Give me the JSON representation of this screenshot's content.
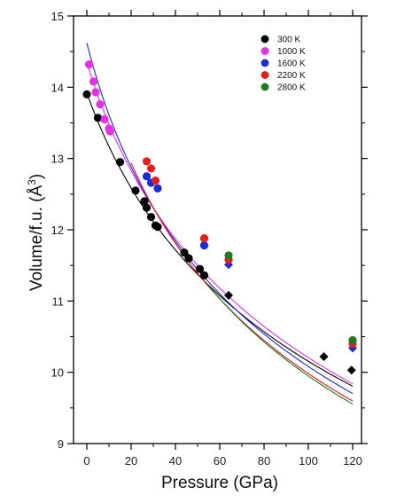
{
  "chart_data": {
    "type": "scatter",
    "title": "",
    "xlabel": "Pressure (GPa)",
    "ylabel_main": "Volume/f.u. (Å",
    "ylabel_sup": "3",
    "ylabel_close": ")",
    "xlim": [
      -6,
      124
    ],
    "ylim": [
      9,
      15
    ],
    "xticks": [
      0,
      20,
      40,
      60,
      80,
      100,
      120
    ],
    "yticks": [
      9,
      10,
      11,
      12,
      13,
      14,
      15
    ],
    "grid": false,
    "legend_position": "top-right",
    "series": [
      {
        "name": "300 K",
        "color": "#000000",
        "points": [
          {
            "x": 0,
            "y": 13.9
          },
          {
            "x": 5,
            "y": 13.57
          },
          {
            "x": 15,
            "y": 12.95
          },
          {
            "x": 22,
            "y": 12.55
          },
          {
            "x": 26,
            "y": 12.4
          },
          {
            "x": 27,
            "y": 12.31
          },
          {
            "x": 29,
            "y": 12.18
          },
          {
            "x": 31,
            "y": 12.06
          },
          {
            "x": 32,
            "y": 12.04
          },
          {
            "x": 44,
            "y": 11.68
          },
          {
            "x": 46,
            "y": 11.6
          },
          {
            "x": 51,
            "y": 11.45
          },
          {
            "x": 53,
            "y": 11.36
          }
        ],
        "diamonds": [
          {
            "x": 64,
            "y": 11.08
          },
          {
            "x": 107,
            "y": 10.22
          },
          {
            "x": 119.5,
            "y": 10.03
          }
        ],
        "fit": {
          "V0": 13.92,
          "K0": 160,
          "K0p": 4.3,
          "xstart": 0
        }
      },
      {
        "name": "1000 K",
        "color": "#e82ee8",
        "points": [
          {
            "x": 1,
            "y": 14.32
          },
          {
            "x": 3,
            "y": 14.08
          },
          {
            "x": 4,
            "y": 13.93
          },
          {
            "x": 6,
            "y": 13.76
          },
          {
            "x": 8,
            "y": 13.55
          },
          {
            "x": 10,
            "y": 13.42
          },
          {
            "x": 10.5,
            "y": 13.38
          }
        ],
        "diamonds": [],
        "fit": {
          "V0": 14.35,
          "K0": 140,
          "K0p": 4.3,
          "xstart": 0
        }
      },
      {
        "name": "1600 K",
        "color": "#1b2bd6",
        "points": [
          {
            "x": 27,
            "y": 12.75
          },
          {
            "x": 29,
            "y": 12.66
          },
          {
            "x": 32,
            "y": 12.58
          },
          {
            "x": 53,
            "y": 11.78
          }
        ],
        "diamonds": [
          {
            "x": 64,
            "y": 11.51
          },
          {
            "x": 120,
            "y": 10.34
          }
        ],
        "fit": {
          "V0": 14.62,
          "K0": 120,
          "K0p": 4.3,
          "xstart": 0
        }
      },
      {
        "name": "2200 K",
        "color": "#e51d1d",
        "points": [
          {
            "x": 27,
            "y": 12.96
          },
          {
            "x": 29,
            "y": 12.86
          },
          {
            "x": 31,
            "y": 12.69
          },
          {
            "x": 53,
            "y": 11.88
          },
          {
            "x": 64,
            "y": 11.58
          },
          {
            "x": 120,
            "y": 10.4
          }
        ],
        "diamonds": [],
        "fit": {
          "V0": 14.97,
          "K0": 99,
          "K0p": 4.45,
          "xstart": 20
        }
      },
      {
        "name": "2800 K",
        "color": "#1e7a1e",
        "points": [
          {
            "x": 64,
            "y": 11.64
          },
          {
            "x": 120,
            "y": 10.45
          }
        ],
        "diamonds": [],
        "fit": {
          "V0": 15.34,
          "K0": 86,
          "K0p": 4.5,
          "xstart": 55
        }
      }
    ]
  }
}
